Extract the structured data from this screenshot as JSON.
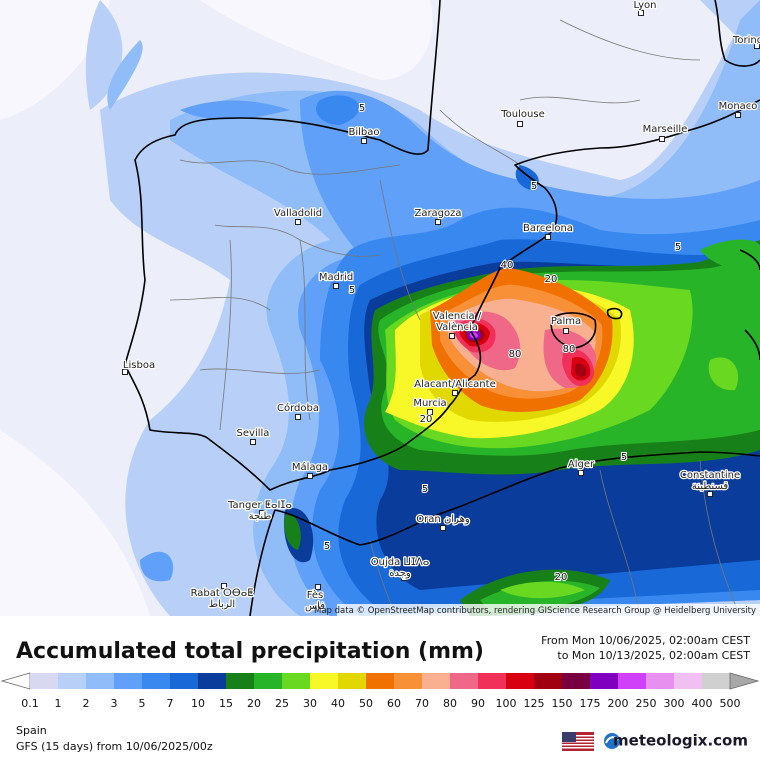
{
  "map": {
    "cities": [
      [
        "Lyon"
      ],
      [
        "Torino"
      ],
      [
        "Monaco"
      ],
      [
        "Toulouse"
      ],
      [
        "Marseille"
      ],
      [
        "Bilbao"
      ],
      [
        "Valladolid"
      ],
      [
        "Zaragoza"
      ],
      [
        "Barcelona"
      ],
      [
        "Madrid"
      ],
      [
        "Valencia /",
        "València"
      ],
      [
        "Palma"
      ],
      [
        "Lisboa"
      ],
      [
        "Alacant/Alicante"
      ],
      [
        "Murcia"
      ],
      [
        "Córdoba"
      ],
      [
        "Sevilla"
      ],
      [
        "Málaga"
      ],
      [
        "Alger"
      ],
      [
        "Constantine",
        "قسنطينة"
      ],
      [
        "Tanger ⵟⴰⵏⵊⴰ",
        "طنجة"
      ],
      [
        "Oran وهران"
      ],
      [
        "Oujda ⵡⵊⴷⴰ",
        "وجدة"
      ],
      [
        "Rabat ⵔⴱⴰⵟ",
        "الرباط"
      ],
      [
        "Fès",
        "فاس"
      ]
    ],
    "contour_labels": [
      5,
      5,
      5,
      5,
      40,
      20,
      20,
      80,
      80,
      5,
      5,
      5,
      20
    ],
    "attribution": "Map data © OpenStreetMap contributors, rendering GIScience Research Group @ Heidelberg University"
  },
  "legend": {
    "title": "Accumulated total precipitation (mm)",
    "from": "From Mon 10/06/2025, 02:00am CEST",
    "to": "to Mon 10/13/2025, 02:00am CEST",
    "levels": [
      0.1,
      1,
      2,
      3,
      5,
      7,
      10,
      15,
      20,
      25,
      30,
      40,
      50,
      60,
      70,
      80,
      90,
      100,
      125,
      150,
      175,
      200,
      250,
      300,
      400,
      500
    ],
    "colors": [
      "#ffffff",
      "#d8d8f0",
      "#b8d0f8",
      "#90bcf8",
      "#60a0f8",
      "#3888f0",
      "#1868d8",
      "#0a3c9c",
      "#188018",
      "#28b428",
      "#68d820",
      "#f8f828",
      "#e0d800",
      "#f07000",
      "#f89038",
      "#f8b090",
      "#f06888",
      "#f03058",
      "#d80010",
      "#a00010",
      "#780040",
      "#8000c0",
      "#d040f8",
      "#e890f0",
      "#f0c0f0",
      "#d0d0d0",
      "#a8a8a8"
    ]
  },
  "footer": {
    "region": "Spain",
    "model": "GFS (15 days) from 10/06/2025/00z",
    "brand": "meteologix.com"
  }
}
